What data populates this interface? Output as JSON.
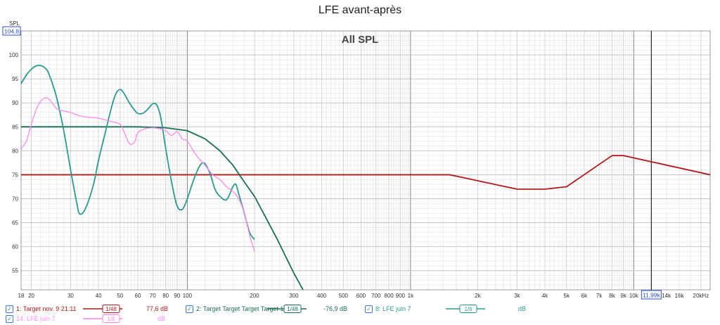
{
  "chart_data": {
    "type": "line",
    "title": "LFE avant-après",
    "annotation": "All SPL",
    "ylabel": "SPL",
    "y_readout": "104,8",
    "x_readout": "11,99k",
    "x_scale": "log",
    "xlim": [
      18,
      22000
    ],
    "ylim": [
      51,
      105
    ],
    "cursor_x": 11990,
    "grid": true,
    "x_ticks": [
      {
        "v": 18,
        "label": "18"
      },
      {
        "v": 20,
        "label": "20"
      },
      {
        "v": 30,
        "label": "30"
      },
      {
        "v": 40,
        "label": "40"
      },
      {
        "v": 50,
        "label": "50"
      },
      {
        "v": 60,
        "label": "60"
      },
      {
        "v": 70,
        "label": "70"
      },
      {
        "v": 80,
        "label": "80"
      },
      {
        "v": 90,
        "label": "90"
      },
      {
        "v": 100,
        "label": "100"
      },
      {
        "v": 200,
        "label": "200"
      },
      {
        "v": 300,
        "label": "300"
      },
      {
        "v": 400,
        "label": "400"
      },
      {
        "v": 500,
        "label": "500"
      },
      {
        "v": 600,
        "label": "600"
      },
      {
        "v": 700,
        "label": "700"
      },
      {
        "v": 800,
        "label": "800"
      },
      {
        "v": 900,
        "label": "900"
      },
      {
        "v": 1000,
        "label": "1k"
      },
      {
        "v": 2000,
        "label": "2k"
      },
      {
        "v": 3000,
        "label": "3k"
      },
      {
        "v": 4000,
        "label": "4k"
      },
      {
        "v": 5000,
        "label": "5k"
      },
      {
        "v": 6000,
        "label": "6k"
      },
      {
        "v": 7000,
        "label": "7k"
      },
      {
        "v": 8000,
        "label": "8k"
      },
      {
        "v": 9000,
        "label": "9k"
      },
      {
        "v": 10000,
        "label": "10k"
      },
      {
        "v": 14000,
        "label": "14k"
      },
      {
        "v": 16000,
        "label": "16k"
      },
      {
        "v": 20000,
        "label": "20kHz"
      }
    ],
    "y_ticks": [
      55,
      60,
      65,
      70,
      75,
      80,
      85,
      90,
      95,
      100
    ],
    "series": [
      {
        "name": "1: Target nov. 9 21:11",
        "color": "#b01a1a",
        "x": [
          18,
          1500,
          3000,
          4000,
          5000,
          8000,
          9000,
          22000
        ],
        "y": [
          75,
          75,
          72,
          72,
          72.5,
          79,
          79,
          75
        ]
      },
      {
        "name": "2: Target Target Target Target 1",
        "color": "#1a6e50",
        "x": [
          18,
          60,
          80,
          100,
          120,
          140,
          160,
          180,
          200,
          250,
          300,
          330
        ],
        "y": [
          85,
          85,
          84.8,
          84.2,
          82.5,
          80,
          77,
          73.5,
          70.5,
          62,
          54.5,
          51
        ]
      },
      {
        "name": "8: LFE juin 7",
        "color": "#2a9a8f",
        "x": [
          18,
          19,
          20,
          21,
          22,
          23,
          24,
          26,
          28,
          30,
          32,
          33,
          35,
          38,
          40,
          43,
          46,
          48,
          50,
          52,
          55,
          58,
          60,
          63,
          66,
          70,
          73,
          76,
          80,
          85,
          90,
          95,
          100,
          105,
          110,
          115,
          120,
          127,
          133,
          140,
          150,
          160,
          165,
          170,
          180,
          190,
          200
        ],
        "y": [
          94,
          95.8,
          97,
          97.7,
          97.8,
          97.3,
          96,
          91,
          84,
          76,
          69,
          66.8,
          68,
          73,
          78,
          84,
          89.5,
          92,
          92.8,
          92,
          90,
          88.5,
          87.8,
          87.8,
          88.5,
          89.8,
          89.5,
          87,
          80.5,
          73.5,
          68.5,
          67.8,
          70,
          73,
          75.5,
          77.2,
          77.3,
          75,
          72,
          70.5,
          69.8,
          72.5,
          73,
          71,
          67,
          63,
          61.5
        ]
      },
      {
        "name": "14: LFE juin 7",
        "color": "#ff88ee",
        "x": [
          18,
          19,
          20,
          21,
          22,
          23,
          24,
          26,
          28,
          30,
          33,
          36,
          40,
          45,
          50,
          52,
          55,
          58,
          60,
          65,
          70,
          75,
          80,
          85,
          90,
          95,
          100,
          110,
          120,
          130,
          140,
          150,
          160,
          170,
          180,
          190,
          200
        ],
        "y": [
          80.5,
          82,
          85.5,
          88.5,
          90.3,
          91,
          90.8,
          88.8,
          88.3,
          88,
          87.3,
          87,
          86.8,
          86.2,
          85.5,
          84,
          81.5,
          81.8,
          83.8,
          84.6,
          84.8,
          84.6,
          84.2,
          83.2,
          84,
          82.5,
          82,
          79,
          77,
          75,
          74,
          72.5,
          71.5,
          70,
          67,
          62.5,
          59
        ]
      }
    ]
  },
  "legend": [
    {
      "label": "1: Target nov. 9 21:11",
      "smoothing": "1/48",
      "level": "77,6 dB",
      "color": "#b01a1a"
    },
    {
      "label": "2: Target Target Target Target 1",
      "smoothing": "1/48",
      "level": "-76,9 dB",
      "color": "#1a6e50"
    },
    {
      "label": "8: LFE juin 7",
      "smoothing": "1/6",
      "level": "dB",
      "color": "#2a9a8f"
    },
    {
      "label": "14: LFE juin 7",
      "smoothing": "1/6",
      "level": "dB",
      "color": "#ff88ee"
    }
  ]
}
